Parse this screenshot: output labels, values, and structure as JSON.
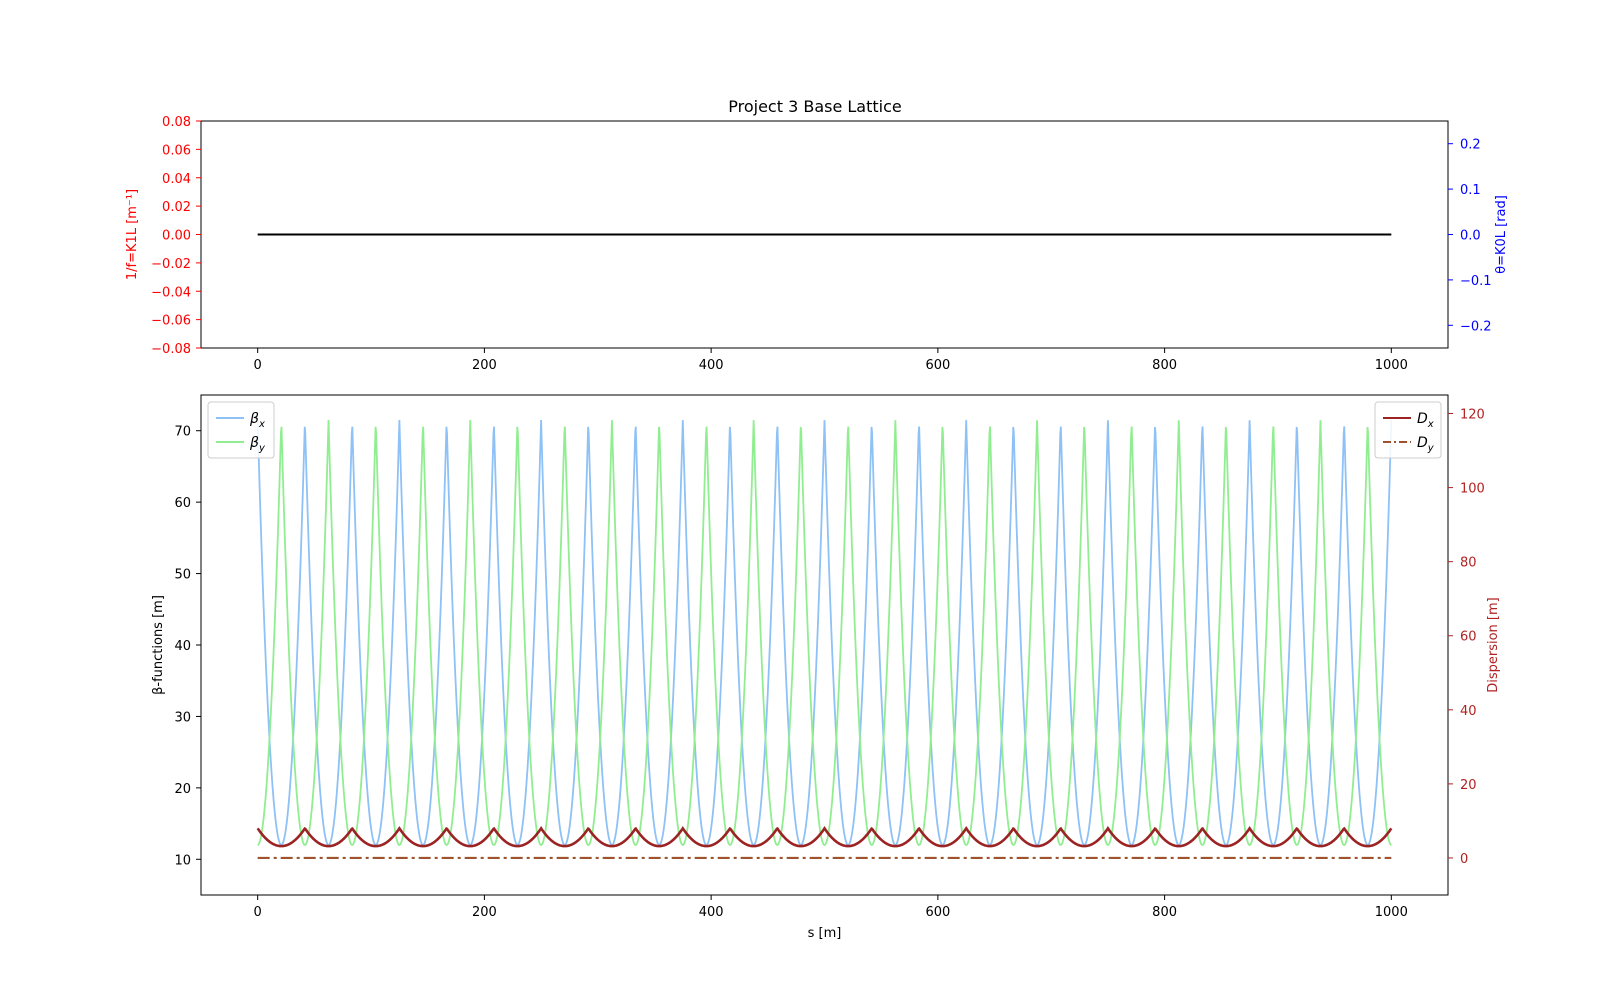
{
  "title": "Project 3 Base Lattice",
  "chart_data": [
    {
      "type": "line",
      "panel": "top",
      "title": "Project 3 Base Lattice",
      "ylabel_left": "1/f=K1L [m⁻¹]",
      "ylabel_right": "θ=K0L [rad]",
      "xlim": [
        -50,
        1050
      ],
      "ylim_left": [
        -0.08,
        0.08
      ],
      "ylim_right": [
        -0.25,
        0.25
      ],
      "x_ticks": [
        "0",
        "200",
        "400",
        "600",
        "800",
        "1000"
      ],
      "y_ticks_left": [
        "0.08",
        "0.06",
        "0.04",
        "0.02",
        "0.00",
        "−0.02",
        "−0.04",
        "−0.06",
        "−0.08"
      ],
      "y_ticks_right": [
        "0.2",
        "0.1",
        "0.0",
        "−0.1",
        "−0.2"
      ],
      "left_axis_color": "#ff0000",
      "right_axis_color": "#0000ff",
      "series": [
        {
          "color": "#000000",
          "x": [
            0,
            1000
          ],
          "y": [
            0,
            0
          ]
        }
      ]
    },
    {
      "type": "line",
      "panel": "bottom",
      "xlabel": "s [m]",
      "ylabel_left": "β-functions [m]",
      "ylabel_right": "Dispersion [m]",
      "xlim": [
        -50,
        1050
      ],
      "ylim_left": [
        5,
        75
      ],
      "ylim_right": [
        -10,
        125
      ],
      "x_ticks": [
        "0",
        "200",
        "400",
        "600",
        "800",
        "1000"
      ],
      "y_ticks_left": [
        "70",
        "60",
        "50",
        "40",
        "30",
        "20",
        "10"
      ],
      "y_ticks_right": [
        "120",
        "100",
        "80",
        "60",
        "40",
        "20",
        "0"
      ],
      "right_axis_color": "#b22222",
      "cell_length": 41.667,
      "n_cells": 24,
      "beta_max": 71.5,
      "beta_min": 12.0,
      "dx_max": 8.0,
      "dx_min": 3.2,
      "dy_value": 0.0,
      "legend_left": {
        "position": "upper left",
        "entries": [
          {
            "label": "β",
            "sub": "x",
            "color": "#8ec1f5",
            "style": "solid"
          },
          {
            "label": "β",
            "sub": "y",
            "color": "#90ee90",
            "style": "solid"
          }
        ]
      },
      "legend_right": {
        "position": "upper right",
        "entries": [
          {
            "label": "D",
            "sub": "x",
            "color": "#9b2323",
            "style": "solid"
          },
          {
            "label": "D",
            "sub": "y",
            "color": "#a0522d",
            "style": "dashdot"
          }
        ]
      }
    }
  ]
}
